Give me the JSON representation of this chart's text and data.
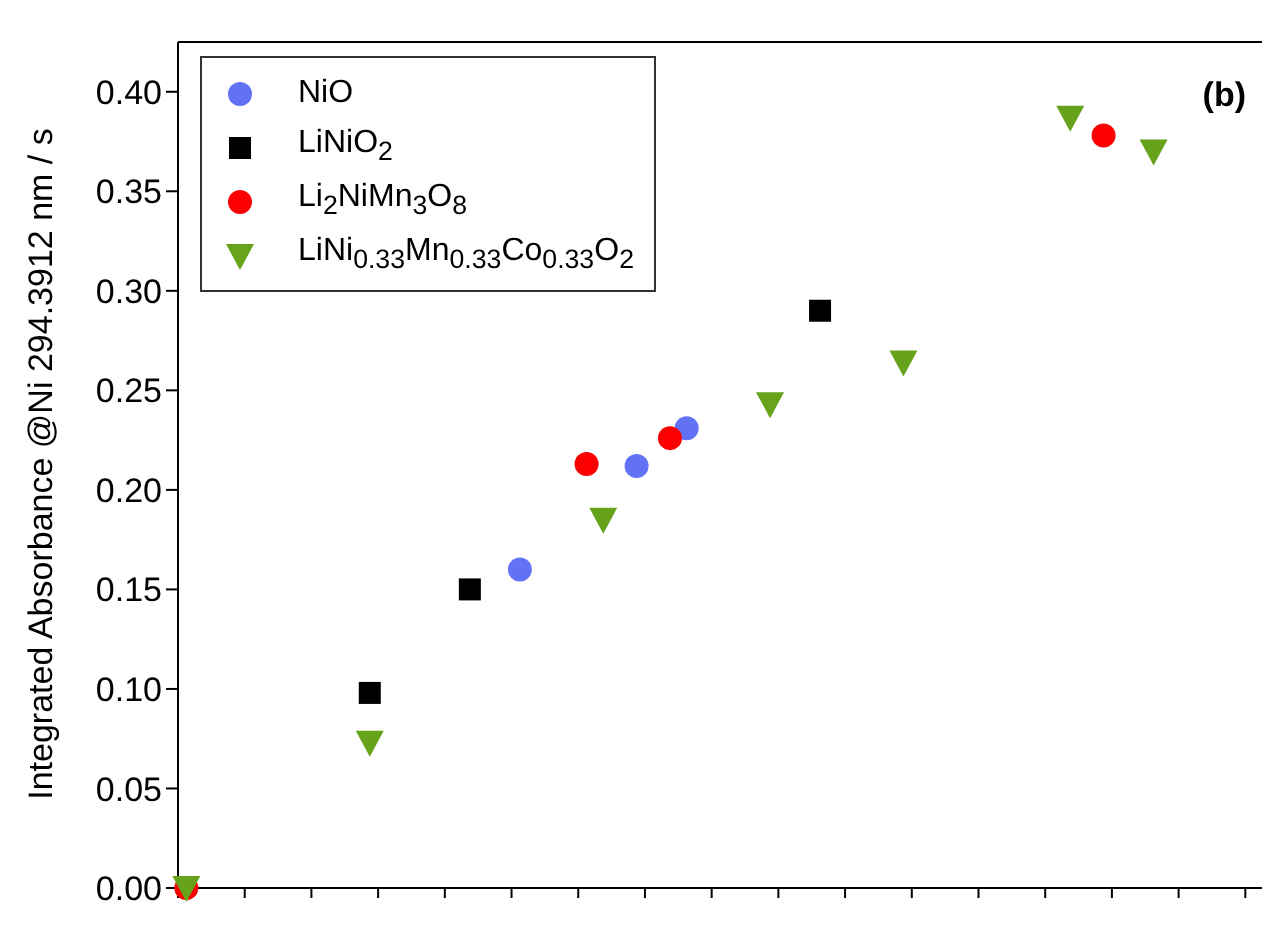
{
  "chart_data": {
    "type": "scatter",
    "ylabel": "Integrated Absorbance @Ni 294.3912 nm / s",
    "annotations": [
      "(b)"
    ],
    "categories": [
      null,
      null,
      null,
      null,
      null,
      null,
      null,
      null,
      null,
      null,
      null,
      null,
      null,
      null,
      null,
      null,
      null,
      null,
      null,
      null,
      null,
      null,
      null,
      null,
      null,
      null,
      null,
      null,
      null,
      null,
      null,
      null,
      null,
      null,
      null,
      null,
      null,
      null,
      null,
      null,
      null,
      null,
      null,
      null,
      null,
      null,
      null,
      null,
      null,
      null,
      null,
      null,
      null,
      null,
      null,
      null,
      null,
      null,
      null,
      null,
      null,
      null,
      null,
      null,
      null
    ],
    "series": [
      {
        "name": "NiO",
        "color": "#6272f5",
        "marker": "circle",
        "values": [
          null,
          null,
          null,
          null,
          null,
          null,
          null,
          null,
          null,
          null,
          null,
          null,
          null,
          null,
          null,
          null,
          null,
          null,
          null,
          null,
          0.16,
          null,
          null,
          null,
          null,
          null,
          null,
          0.212,
          null,
          null,
          0.231,
          null,
          null,
          null,
          null,
          null,
          null,
          null,
          null,
          null,
          null,
          null,
          null,
          null,
          null,
          null,
          null,
          null,
          null,
          null,
          null,
          null,
          null,
          null,
          null,
          null,
          null,
          null,
          null,
          null,
          null,
          null,
          null,
          null,
          null
        ]
      },
      {
        "name": "LiNiO$_{2}$",
        "color": "#000000",
        "marker": "square",
        "values": [
          null,
          null,
          null,
          null,
          null,
          null,
          null,
          null,
          null,
          null,
          null,
          0.098,
          null,
          null,
          null,
          null,
          null,
          0.15,
          null,
          null,
          null,
          null,
          null,
          null,
          null,
          null,
          null,
          null,
          null,
          null,
          null,
          null,
          null,
          null,
          null,
          null,
          null,
          null,
          0.29,
          null,
          null,
          null,
          null,
          null,
          null,
          null,
          null,
          null,
          null,
          null,
          null,
          null,
          null,
          null,
          null,
          null,
          null,
          null,
          null,
          null,
          null,
          null,
          null,
          null,
          null
        ]
      },
      {
        "name": "Li$_{2}$NiMn$_{3}$O$_{8}$",
        "color": "#fa0000",
        "marker": "circle",
        "values": [
          0.0,
          null,
          null,
          null,
          null,
          null,
          null,
          null,
          null,
          null,
          null,
          null,
          null,
          null,
          null,
          null,
          null,
          null,
          null,
          null,
          null,
          null,
          null,
          null,
          0.213,
          null,
          null,
          null,
          null,
          0.226,
          null,
          null,
          null,
          null,
          null,
          null,
          null,
          null,
          null,
          null,
          null,
          null,
          null,
          null,
          null,
          null,
          null,
          null,
          null,
          null,
          null,
          null,
          null,
          null,
          null,
          0.378,
          null,
          null,
          null,
          null,
          null,
          null,
          null,
          null,
          null
        ]
      },
      {
        "name": "LiNi$_{0.33}$Mn$_{0.33}$Co$_{0.33}$O$_{2}$",
        "color": "#66a21a",
        "marker": "triangle",
        "values": [
          0.0,
          null,
          null,
          null,
          null,
          null,
          null,
          null,
          null,
          null,
          null,
          0.073,
          null,
          null,
          null,
          null,
          null,
          null,
          null,
          null,
          null,
          null,
          null,
          null,
          null,
          0.185,
          null,
          null,
          null,
          null,
          null,
          null,
          null,
          null,
          null,
          0.243,
          null,
          null,
          null,
          null,
          null,
          null,
          null,
          0.264,
          null,
          null,
          null,
          null,
          null,
          null,
          null,
          null,
          null,
          0.387,
          null,
          null,
          null,
          null,
          0.37,
          null,
          null,
          null,
          null,
          null,
          null
        ]
      }
    ],
    "ylim": [
      0,
      0.425
    ],
    "yticks": [
      {
        "value": 0,
        "label": "0.00"
      },
      {
        "value": 0.05,
        "label": "0.05"
      },
      {
        "value": 0.1,
        "label": "0.10"
      },
      {
        "value": 0.15,
        "label": "0.15"
      },
      {
        "value": 0.2,
        "label": "0.20"
      },
      {
        "value": 0.25,
        "label": "0.25"
      },
      {
        "value": 0.3,
        "label": "0.30"
      },
      {
        "value": 0.35,
        "label": "0.35"
      },
      {
        "value": 0.4,
        "label": "0.40"
      }
    ],
    "tick_labels": "y",
    "grid": false,
    "legend": "top left"
  }
}
